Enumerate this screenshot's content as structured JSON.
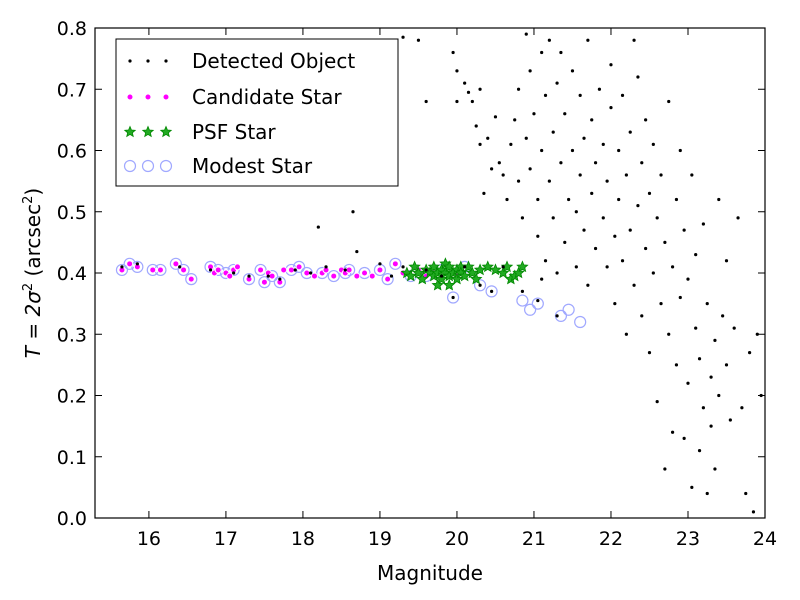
{
  "chart_data": {
    "type": "scatter",
    "xlabel": "Magnitude",
    "ylabel": {
      "prefix": "T = 2σ",
      "exp": "2",
      "mid": " (arcsec",
      "exp2": "2",
      "suffix": ")"
    },
    "xlim": [
      15.3,
      24
    ],
    "ylim": [
      0,
      0.8
    ],
    "xticks": [
      16,
      17,
      18,
      19,
      20,
      21,
      22,
      23,
      24
    ],
    "yticks": [
      0.0,
      0.1,
      0.2,
      0.3,
      0.4,
      0.5,
      0.6,
      0.7,
      0.8
    ],
    "xtick_labels": [
      "16",
      "17",
      "18",
      "19",
      "20",
      "21",
      "22",
      "23",
      "24"
    ],
    "ytick_labels": [
      "0.0",
      "0.1",
      "0.2",
      "0.3",
      "0.4",
      "0.5",
      "0.6",
      "0.7",
      "0.8"
    ],
    "grid": false,
    "legend_position": "top-left",
    "series": [
      {
        "name": "Detected Object",
        "marker": "dot",
        "color": "#000000",
        "points": [
          [
            15.65,
            0.41
          ],
          [
            15.85,
            0.415
          ],
          [
            16.4,
            0.41
          ],
          [
            16.8,
            0.405
          ],
          [
            17.1,
            0.4
          ],
          [
            17.3,
            0.395
          ],
          [
            17.55,
            0.395
          ],
          [
            17.7,
            0.39
          ],
          [
            17.9,
            0.405
          ],
          [
            18.1,
            0.4
          ],
          [
            18.3,
            0.41
          ],
          [
            18.55,
            0.405
          ],
          [
            18.65,
            0.5
          ],
          [
            18.7,
            0.435
          ],
          [
            18.2,
            0.475
          ],
          [
            19.0,
            0.415
          ],
          [
            19.15,
            0.395
          ],
          [
            19.3,
            0.41
          ],
          [
            19.6,
            0.405
          ],
          [
            19.8,
            0.395
          ],
          [
            19.95,
            0.36
          ],
          [
            20.1,
            0.41
          ],
          [
            20.3,
            0.38
          ],
          [
            20.45,
            0.37
          ],
          [
            20.6,
            0.41
          ],
          [
            20.85,
            0.37
          ],
          [
            21.05,
            0.355
          ],
          [
            21.1,
            0.39
          ],
          [
            21.3,
            0.33
          ],
          [
            19.3,
            0.785
          ],
          [
            19.5,
            0.78
          ],
          [
            19.6,
            0.68
          ],
          [
            19.95,
            0.76
          ],
          [
            20.0,
            0.73
          ],
          [
            20.15,
            0.695
          ],
          [
            20.1,
            0.71
          ],
          [
            20.2,
            0.68
          ],
          [
            20.0,
            0.68
          ],
          [
            20.25,
            0.64
          ],
          [
            20.3,
            0.7
          ],
          [
            20.3,
            0.61
          ],
          [
            20.4,
            0.62
          ],
          [
            20.35,
            0.53
          ],
          [
            20.45,
            0.57
          ],
          [
            20.5,
            0.655
          ],
          [
            20.55,
            0.58
          ],
          [
            20.6,
            0.56
          ],
          [
            20.65,
            0.52
          ],
          [
            20.7,
            0.61
          ],
          [
            20.75,
            0.65
          ],
          [
            20.8,
            0.55
          ],
          [
            20.8,
            0.7
          ],
          [
            20.85,
            0.49
          ],
          [
            20.9,
            0.62
          ],
          [
            20.9,
            0.79
          ],
          [
            20.95,
            0.57
          ],
          [
            20.95,
            0.73
          ],
          [
            21.0,
            0.66
          ],
          [
            21.05,
            0.46
          ],
          [
            21.05,
            0.52
          ],
          [
            21.1,
            0.6
          ],
          [
            21.1,
            0.76
          ],
          [
            21.15,
            0.42
          ],
          [
            21.15,
            0.69
          ],
          [
            21.2,
            0.55
          ],
          [
            21.2,
            0.78
          ],
          [
            21.25,
            0.49
          ],
          [
            21.25,
            0.63
          ],
          [
            21.3,
            0.4
          ],
          [
            21.3,
            0.71
          ],
          [
            21.35,
            0.58
          ],
          [
            21.35,
            0.76
          ],
          [
            21.4,
            0.45
          ],
          [
            21.4,
            0.66
          ],
          [
            21.45,
            0.52
          ],
          [
            21.5,
            0.6
          ],
          [
            21.5,
            0.73
          ],
          [
            21.55,
            0.41
          ],
          [
            21.55,
            0.5
          ],
          [
            21.6,
            0.56
          ],
          [
            21.6,
            0.69
          ],
          [
            21.65,
            0.47
          ],
          [
            21.65,
            0.62
          ],
          [
            21.7,
            0.38
          ],
          [
            21.7,
            0.78
          ],
          [
            21.75,
            0.53
          ],
          [
            21.75,
            0.65
          ],
          [
            21.8,
            0.44
          ],
          [
            21.8,
            0.58
          ],
          [
            21.85,
            0.7
          ],
          [
            21.9,
            0.49
          ],
          [
            21.9,
            0.61
          ],
          [
            21.95,
            0.41
          ],
          [
            21.95,
            0.55
          ],
          [
            22.0,
            0.67
          ],
          [
            22.0,
            0.74
          ],
          [
            22.05,
            0.35
          ],
          [
            22.05,
            0.46
          ],
          [
            22.1,
            0.52
          ],
          [
            22.1,
            0.6
          ],
          [
            22.15,
            0.42
          ],
          [
            22.15,
            0.69
          ],
          [
            22.2,
            0.3
          ],
          [
            22.2,
            0.56
          ],
          [
            22.25,
            0.47
          ],
          [
            22.25,
            0.63
          ],
          [
            22.3,
            0.38
          ],
          [
            22.3,
            0.78
          ],
          [
            22.35,
            0.51
          ],
          [
            22.35,
            0.72
          ],
          [
            22.4,
            0.33
          ],
          [
            22.4,
            0.58
          ],
          [
            22.45,
            0.44
          ],
          [
            22.45,
            0.65
          ],
          [
            22.5,
            0.27
          ],
          [
            22.5,
            0.53
          ],
          [
            22.55,
            0.4
          ],
          [
            22.55,
            0.61
          ],
          [
            22.6,
            0.19
          ],
          [
            22.6,
            0.49
          ],
          [
            22.65,
            0.35
          ],
          [
            22.65,
            0.56
          ],
          [
            22.7,
            0.08
          ],
          [
            22.7,
            0.45
          ],
          [
            22.75,
            0.3
          ],
          [
            22.75,
            0.68
          ],
          [
            22.8,
            0.14
          ],
          [
            22.8,
            0.41
          ],
          [
            22.85,
            0.25
          ],
          [
            22.85,
            0.52
          ],
          [
            22.9,
            0.36
          ],
          [
            22.9,
            0.6
          ],
          [
            22.95,
            0.13
          ],
          [
            22.95,
            0.47
          ],
          [
            23.0,
            0.22
          ],
          [
            23.0,
            0.39
          ],
          [
            23.05,
            0.05
          ],
          [
            23.05,
            0.56
          ],
          [
            23.1,
            0.31
          ],
          [
            23.1,
            0.43
          ],
          [
            23.15,
            0.11
          ],
          [
            23.15,
            0.26
          ],
          [
            23.2,
            0.18
          ],
          [
            23.2,
            0.48
          ],
          [
            23.25,
            0.04
          ],
          [
            23.25,
            0.35
          ],
          [
            23.3,
            0.15
          ],
          [
            23.3,
            0.23
          ],
          [
            23.35,
            0.29
          ],
          [
            23.35,
            0.08
          ],
          [
            23.4,
            0.2
          ],
          [
            23.4,
            0.52
          ],
          [
            23.45,
            0.33
          ],
          [
            23.5,
            0.25
          ],
          [
            23.5,
            0.42
          ],
          [
            23.55,
            0.16
          ],
          [
            23.6,
            0.31
          ],
          [
            23.65,
            0.49
          ],
          [
            23.7,
            0.18
          ],
          [
            23.75,
            0.04
          ],
          [
            23.8,
            0.27
          ],
          [
            23.85,
            0.01
          ],
          [
            23.9,
            0.3
          ],
          [
            23.95,
            0.2
          ]
        ]
      },
      {
        "name": "Candidate Star",
        "marker": "circle",
        "color": "#ff00ff",
        "points": [
          [
            15.65,
            0.405
          ],
          [
            15.75,
            0.415
          ],
          [
            15.85,
            0.41
          ],
          [
            16.05,
            0.405
          ],
          [
            16.15,
            0.405
          ],
          [
            16.35,
            0.415
          ],
          [
            16.45,
            0.405
          ],
          [
            16.55,
            0.39
          ],
          [
            16.8,
            0.41
          ],
          [
            16.85,
            0.4
          ],
          [
            16.9,
            0.405
          ],
          [
            17.0,
            0.4
          ],
          [
            17.05,
            0.395
          ],
          [
            17.1,
            0.405
          ],
          [
            17.15,
            0.41
          ],
          [
            17.3,
            0.39
          ],
          [
            17.45,
            0.405
          ],
          [
            17.5,
            0.385
          ],
          [
            17.55,
            0.4
          ],
          [
            17.6,
            0.395
          ],
          [
            17.7,
            0.385
          ],
          [
            17.75,
            0.405
          ],
          [
            17.85,
            0.405
          ],
          [
            17.95,
            0.41
          ],
          [
            18.05,
            0.4
          ],
          [
            18.15,
            0.395
          ],
          [
            18.25,
            0.4
          ],
          [
            18.3,
            0.405
          ],
          [
            18.4,
            0.395
          ],
          [
            18.5,
            0.405
          ],
          [
            18.55,
            0.4
          ],
          [
            18.6,
            0.405
          ],
          [
            18.7,
            0.395
          ],
          [
            18.8,
            0.4
          ],
          [
            18.9,
            0.395
          ],
          [
            19.0,
            0.405
          ],
          [
            19.1,
            0.39
          ],
          [
            19.2,
            0.415
          ],
          [
            19.3,
            0.4
          ],
          [
            19.4,
            0.395
          ],
          [
            19.5,
            0.405
          ],
          [
            19.6,
            0.395
          ],
          [
            19.7,
            0.4
          ],
          [
            19.8,
            0.405
          ],
          [
            19.9,
            0.41
          ],
          [
            20.0,
            0.395
          ]
        ]
      },
      {
        "name": "PSF Star",
        "marker": "star",
        "color": "#008800",
        "points": [
          [
            19.35,
            0.4
          ],
          [
            19.4,
            0.395
          ],
          [
            19.45,
            0.41
          ],
          [
            19.5,
            0.4
          ],
          [
            19.55,
            0.39
          ],
          [
            19.6,
            0.405
          ],
          [
            19.65,
            0.4
          ],
          [
            19.7,
            0.395
          ],
          [
            19.7,
            0.41
          ],
          [
            19.75,
            0.4
          ],
          [
            19.8,
            0.405
          ],
          [
            19.8,
            0.39
          ],
          [
            19.85,
            0.415
          ],
          [
            19.85,
            0.4
          ],
          [
            19.9,
            0.395
          ],
          [
            19.9,
            0.41
          ],
          [
            19.95,
            0.4
          ],
          [
            20.0,
            0.405
          ],
          [
            20.0,
            0.39
          ],
          [
            20.05,
            0.41
          ],
          [
            20.05,
            0.4
          ],
          [
            20.1,
            0.395
          ],
          [
            20.15,
            0.41
          ],
          [
            20.2,
            0.4
          ],
          [
            20.25,
            0.39
          ],
          [
            20.3,
            0.405
          ],
          [
            20.4,
            0.41
          ],
          [
            20.5,
            0.405
          ],
          [
            20.6,
            0.4
          ],
          [
            20.65,
            0.41
          ],
          [
            20.7,
            0.39
          ],
          [
            20.75,
            0.395
          ],
          [
            20.8,
            0.4
          ],
          [
            20.85,
            0.41
          ],
          [
            19.75,
            0.38
          ],
          [
            19.9,
            0.38
          ]
        ]
      },
      {
        "name": "Modest Star",
        "marker": "open-circle",
        "color": "#a0a8ff",
        "points": [
          [
            15.65,
            0.405
          ],
          [
            15.75,
            0.415
          ],
          [
            15.85,
            0.41
          ],
          [
            16.05,
            0.405
          ],
          [
            16.15,
            0.405
          ],
          [
            16.35,
            0.415
          ],
          [
            16.45,
            0.405
          ],
          [
            16.55,
            0.39
          ],
          [
            16.8,
            0.41
          ],
          [
            16.9,
            0.405
          ],
          [
            17.0,
            0.4
          ],
          [
            17.1,
            0.405
          ],
          [
            17.3,
            0.39
          ],
          [
            17.45,
            0.405
          ],
          [
            17.5,
            0.385
          ],
          [
            17.6,
            0.395
          ],
          [
            17.7,
            0.385
          ],
          [
            17.85,
            0.405
          ],
          [
            17.95,
            0.41
          ],
          [
            18.05,
            0.4
          ],
          [
            18.25,
            0.4
          ],
          [
            18.4,
            0.395
          ],
          [
            18.55,
            0.4
          ],
          [
            18.6,
            0.405
          ],
          [
            18.8,
            0.4
          ],
          [
            19.0,
            0.405
          ],
          [
            19.1,
            0.39
          ],
          [
            19.2,
            0.415
          ],
          [
            19.4,
            0.395
          ],
          [
            19.6,
            0.395
          ],
          [
            19.8,
            0.405
          ],
          [
            19.95,
            0.36
          ],
          [
            20.1,
            0.41
          ],
          [
            20.3,
            0.38
          ],
          [
            20.45,
            0.37
          ],
          [
            20.85,
            0.355
          ],
          [
            20.95,
            0.34
          ],
          [
            21.05,
            0.35
          ],
          [
            21.35,
            0.33
          ],
          [
            21.45,
            0.34
          ],
          [
            21.6,
            0.32
          ]
        ]
      }
    ]
  }
}
